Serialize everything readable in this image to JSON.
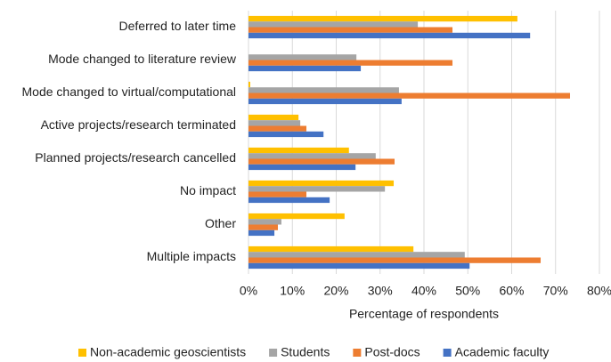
{
  "chart_data": {
    "type": "hbar",
    "categories": [
      "Deferred to later time",
      "Mode changed to literature review",
      "Mode changed to virtual/computational",
      "Active projects/research terminated",
      "Planned projects/research cancelled",
      "No impact",
      "Other",
      "Multiple impacts"
    ],
    "series": [
      {
        "name": "Non-academic geoscientists",
        "color": "#FFC000",
        "values": [
          61.3,
          0,
          0.4,
          11.4,
          22.9,
          33.1,
          21.9,
          37.6
        ]
      },
      {
        "name": "Students",
        "color": "#A5A5A5",
        "values": [
          38.6,
          24.6,
          34.3,
          11.8,
          29,
          31.1,
          7.5,
          49.3
        ]
      },
      {
        "name": "Post-docs",
        "color": "#ED7D31",
        "values": [
          46.5,
          46.5,
          73.3,
          13.2,
          33.3,
          13.2,
          6.7,
          66.6
        ]
      },
      {
        "name": "Academic faculty",
        "color": "#4472C4",
        "values": [
          64.2,
          25.6,
          34.9,
          17.1,
          24.4,
          18.5,
          5.9,
          50.4
        ]
      }
    ],
    "xlabel": "Percentage of respondents",
    "xlim": [
      0,
      80
    ],
    "xticks": [
      {
        "value": 0,
        "label": "0%"
      },
      {
        "value": 10,
        "label": "10%"
      },
      {
        "value": 20,
        "label": "20%"
      },
      {
        "value": 30,
        "label": "30%"
      },
      {
        "value": 40,
        "label": "40%"
      },
      {
        "value": 50,
        "label": "50%"
      },
      {
        "value": 60,
        "label": "60%"
      },
      {
        "value": 70,
        "label": "70%"
      },
      {
        "value": 80,
        "label": "80%"
      }
    ],
    "grid": true,
    "legend": "bottom"
  }
}
